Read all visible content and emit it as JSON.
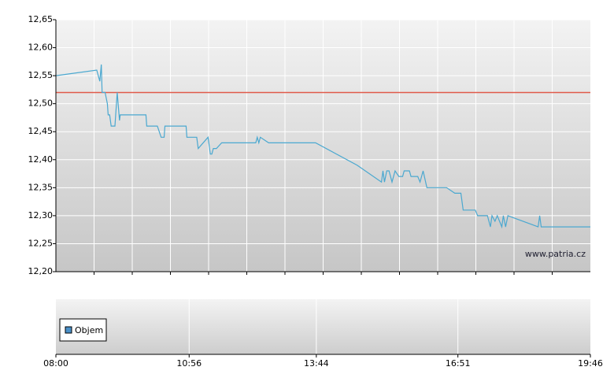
{
  "chart_data": {
    "type": "line",
    "watermark": "www.patria.cz",
    "legend": "Objem",
    "legend_color": "#4a90c8",
    "xlim": [
      480,
      1186
    ],
    "xticks": [
      {
        "value": 480,
        "label": "08:00"
      },
      {
        "value": 656,
        "label": "10:56"
      },
      {
        "value": 824,
        "label": "13:44"
      },
      {
        "value": 1011,
        "label": "16:51"
      },
      {
        "value": 1186,
        "label": "19:46"
      }
    ],
    "ylim": [
      12.2,
      12.65
    ],
    "yticks": [
      {
        "value": 12.2,
        "label": "12,20"
      },
      {
        "value": 12.25,
        "label": "12,25"
      },
      {
        "value": 12.3,
        "label": "12,30"
      },
      {
        "value": 12.35,
        "label": "12,35"
      },
      {
        "value": 12.4,
        "label": "12,40"
      },
      {
        "value": 12.45,
        "label": "12,45"
      },
      {
        "value": 12.5,
        "label": "12,50"
      },
      {
        "value": 12.55,
        "label": "12,55"
      },
      {
        "value": 12.6,
        "label": "12,60"
      },
      {
        "value": 12.65,
        "label": "12,65"
      }
    ],
    "reference_line": 12.52,
    "reference_color": "#e05a4a",
    "grid": true,
    "series": [
      {
        "color": "#4aa8d0",
        "x": [
          480,
          534,
          538,
          540,
          541,
          545,
          548,
          549,
          551,
          553,
          558,
          561,
          564,
          565,
          599,
          600,
          614,
          619,
          623,
          624,
          652,
          653,
          666,
          668,
          681,
          684,
          686,
          688,
          692,
          699,
          744,
          746,
          748,
          750,
          761,
          823,
          878,
          910,
          912,
          914,
          917,
          920,
          924,
          928,
          933,
          938,
          940,
          947,
          949,
          958,
          961,
          965,
          970,
          996,
          1007,
          1015,
          1018,
          1034,
          1037,
          1050,
          1054,
          1056,
          1060,
          1063,
          1069,
          1071,
          1074,
          1077,
          1117,
          1119,
          1121,
          1186
        ],
        "values": [
          12.55,
          12.56,
          12.54,
          12.57,
          12.52,
          12.52,
          12.5,
          12.48,
          12.48,
          12.46,
          12.46,
          12.52,
          12.47,
          12.48,
          12.48,
          12.46,
          12.46,
          12.44,
          12.44,
          12.46,
          12.46,
          12.44,
          12.44,
          12.42,
          12.44,
          12.41,
          12.41,
          12.42,
          12.42,
          12.43,
          12.43,
          12.44,
          12.43,
          12.44,
          12.43,
          12.43,
          12.39,
          12.36,
          12.38,
          12.36,
          12.38,
          12.38,
          12.36,
          12.38,
          12.37,
          12.37,
          12.38,
          12.38,
          12.37,
          12.37,
          12.36,
          12.38,
          12.35,
          12.35,
          12.34,
          12.34,
          12.31,
          12.31,
          12.3,
          12.3,
          12.28,
          12.3,
          12.29,
          12.3,
          12.28,
          12.3,
          12.28,
          12.3,
          12.28,
          12.3,
          12.28,
          12.28
        ]
      }
    ]
  }
}
